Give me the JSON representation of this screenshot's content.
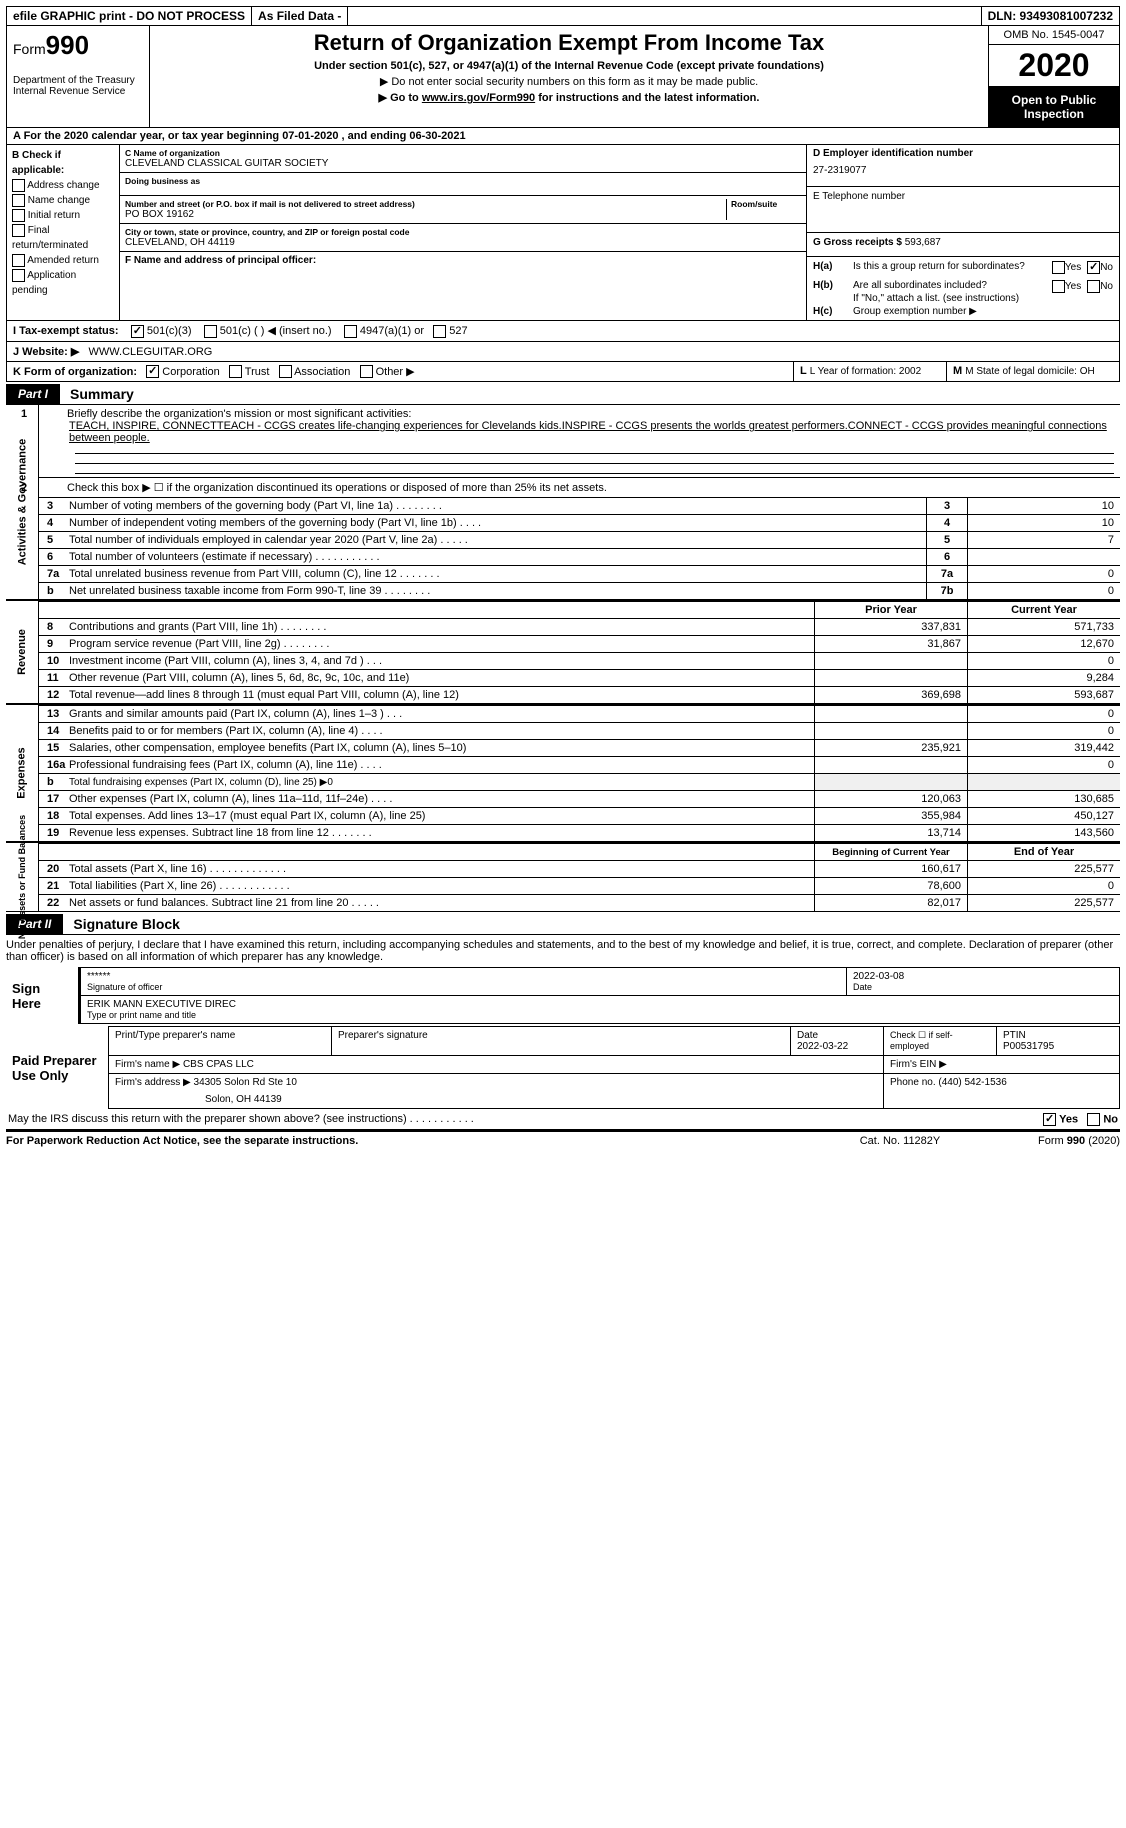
{
  "topbar": {
    "efile": "efile GRAPHIC print - DO NOT PROCESS",
    "asFiled": "As Filed Data -",
    "dln": "DLN: 93493081007232"
  },
  "header": {
    "form": "Form",
    "formNum": "990",
    "dept": "Department of the Treasury",
    "irs": "Internal Revenue Service",
    "title": "Return of Organization Exempt From Income Tax",
    "sub1": "Under section 501(c), 527, or 4947(a)(1) of the Internal Revenue Code (except private foundations)",
    "sub2": "▶ Do not enter social security numbers on this form as it may be made public.",
    "sub3a": "▶ Go to ",
    "sub3link": "www.irs.gov/Form990",
    "sub3b": " for instructions and the latest information.",
    "omb": "OMB No. 1545-0047",
    "year": "2020",
    "open": "Open to Public Inspection"
  },
  "rowA": "A   For the 2020 calendar year, or tax year beginning 07-01-2020   , and ending 06-30-2021",
  "colB": {
    "label": "B Check if applicable:",
    "items": [
      "Address change",
      "Name change",
      "Initial return",
      "Final return/terminated",
      "Amended return",
      "Application pending"
    ]
  },
  "colC": {
    "orgLbl": "C Name of organization",
    "org": "CLEVELAND CLASSICAL GUITAR SOCIETY",
    "dbaLbl": "Doing business as",
    "dba": "",
    "addrLbl": "Number and street (or P.O. box if mail is not delivered to street address)",
    "roomLbl": "Room/suite",
    "addr": "PO BOX 19162",
    "cityLbl": "City or town, state or province, country, and ZIP or foreign postal code",
    "city": "CLEVELAND, OH  44119",
    "fLbl": "F  Name and address of principal officer:",
    "fVal": ""
  },
  "colD": {
    "dLbl": "D Employer identification number",
    "ein": "27-2319077",
    "eLbl": "E Telephone number",
    "ePhone": "",
    "gLbl": "G Gross receipts $ ",
    "gVal": "593,687",
    "ha": "Is this a group return for subordinates?",
    "hb": "Are all subordinates included?",
    "hbNote": "If \"No,\" attach a list. (see instructions)",
    "hc": "Group exemption number ▶"
  },
  "rowI": {
    "lbl": "I   Tax-exempt status:",
    "o1": "501(c)(3)",
    "o2": "501(c) (   ) ◀ (insert no.)",
    "o3": "4947(a)(1) or",
    "o4": "527"
  },
  "rowJ": {
    "lbl": "J   Website: ▶",
    "val": "WWW.CLEGUITAR.ORG"
  },
  "rowK": {
    "lbl": "K Form of organization:",
    "opts": [
      "Corporation",
      "Trust",
      "Association",
      "Other ▶"
    ],
    "l": "L Year of formation: 2002",
    "m": "M State of legal domicile: OH"
  },
  "part1": {
    "badge": "Part I",
    "title": "Summary",
    "line1lbl": "1",
    "line1": "Briefly describe the organization's mission or most significant activities:",
    "line1txt": "TEACH, INSPIRE, CONNECTTEACH - CCGS creates life-changing experiences for Clevelands kids.INSPIRE - CCGS presents the worlds greatest performers.CONNECT - CCGS provides meaningful connections between people.",
    "line2lbl": "2",
    "line2": "Check this box ▶ ☐ if the organization discontinued its operations or disposed of more than 25% its net assets.",
    "rows36": [
      {
        "n": "3",
        "d": "Number of voting members of the governing body (Part VI, line 1a)   .    .    .    .    .    .    .    .",
        "k": "3",
        "v": "10"
      },
      {
        "n": "4",
        "d": "Number of independent voting members of the governing body (Part VI, line 1b)   .    .    .    .",
        "k": "4",
        "v": "10"
      },
      {
        "n": "5",
        "d": "Total number of individuals employed in calendar year 2020 (Part V, line 2a)   .    .    .    .    .",
        "k": "5",
        "v": "7"
      },
      {
        "n": "6",
        "d": "Total number of volunteers (estimate if necessary)   .    .    .    .    .    .    .    .    .    .    .",
        "k": "6",
        "v": ""
      },
      {
        "n": "7a",
        "d": "Total unrelated business revenue from Part VIII, column (C), line 12   .    .    .    .    .    .    .",
        "k": "7a",
        "v": "0"
      },
      {
        "n": "b",
        "d": "Net unrelated business taxable income from Form 990-T, line 39    .    .    .    .    .    .    .    .",
        "k": "7b",
        "v": "0"
      }
    ],
    "colhdrs": {
      "py": "Prior Year",
      "cy": "Current Year",
      "boy": "Beginning of Current Year",
      "eoy": "End of Year"
    },
    "revenue": [
      {
        "n": "8",
        "d": "Contributions and grants (Part VIII, line 1h)    .    .    .    .    .    .    .    .",
        "p": "337,831",
        "c": "571,733"
      },
      {
        "n": "9",
        "d": "Program service revenue (Part VIII, line 2g)    .    .    .    .    .    .    .    .",
        "p": "31,867",
        "c": "12,670"
      },
      {
        "n": "10",
        "d": "Investment income (Part VIII, column (A), lines 3, 4, and 7d )    .    .    .",
        "p": "",
        "c": "0"
      },
      {
        "n": "11",
        "d": "Other revenue (Part VIII, column (A), lines 5, 6d, 8c, 9c, 10c, and 11e)",
        "p": "",
        "c": "9,284"
      },
      {
        "n": "12",
        "d": "Total revenue—add lines 8 through 11 (must equal Part VIII, column (A), line 12)",
        "p": "369,698",
        "c": "593,687"
      }
    ],
    "expenses": [
      {
        "n": "13",
        "d": "Grants and similar amounts paid (Part IX, column (A), lines 1–3 )   .    .    .",
        "p": "",
        "c": "0"
      },
      {
        "n": "14",
        "d": "Benefits paid to or for members (Part IX, column (A), line 4)    .    .    .    .",
        "p": "",
        "c": "0"
      },
      {
        "n": "15",
        "d": "Salaries, other compensation, employee benefits (Part IX, column (A), lines 5–10)",
        "p": "235,921",
        "c": "319,442"
      },
      {
        "n": "16a",
        "d": "Professional fundraising fees (Part IX, column (A), line 11e)    .    .    .    .",
        "p": "",
        "c": "0"
      },
      {
        "n": "b",
        "d": "Total fundraising expenses (Part IX, column (D), line 25) ▶0",
        "p": "",
        "c": "",
        "noval": true
      },
      {
        "n": "17",
        "d": "Other expenses (Part IX, column (A), lines 11a–11d, 11f–24e)    .    .    .    .",
        "p": "120,063",
        "c": "130,685"
      },
      {
        "n": "18",
        "d": "Total expenses. Add lines 13–17 (must equal Part IX, column (A), line 25)",
        "p": "355,984",
        "c": "450,127"
      },
      {
        "n": "19",
        "d": "Revenue less expenses. Subtract line 18 from line 12   .    .    .    .    .    .    .",
        "p": "13,714",
        "c": "143,560"
      }
    ],
    "netassets": [
      {
        "n": "20",
        "d": "Total assets (Part X, line 16)  .    .    .    .    .    .    .    .    .    .    .    .    .",
        "p": "160,617",
        "c": "225,577"
      },
      {
        "n": "21",
        "d": "Total liabilities (Part X, line 26)    .    .    .    .    .    .    .    .    .    .    .    .",
        "p": "78,600",
        "c": "0"
      },
      {
        "n": "22",
        "d": "Net assets or fund balances. Subtract line 21 from line 20    .    .    .    .    .",
        "p": "82,017",
        "c": "225,577"
      }
    ],
    "vlabels": {
      "ag": "Activities & Governance",
      "rev": "Revenue",
      "exp": "Expenses",
      "na": "Net Assets or\nFund Balances"
    }
  },
  "part2": {
    "badge": "Part II",
    "title": "Signature Block",
    "decl": "Under penalties of perjury, I declare that I have examined this return, including accompanying schedules and statements, and to the best of my knowledge and belief, it is true, correct, and complete. Declaration of preparer (other than officer) is based on all information of which preparer has any knowledge.",
    "signHere": "Sign Here",
    "stars": "******",
    "sigOff": "Signature of officer",
    "date": "2022-03-08",
    "dateLbl": "Date",
    "name": "ERIK MANN EXECUTIVE DIREC",
    "nameLbl": "Type or print name and title",
    "paid": "Paid Preparer Use Only",
    "prepName": "Print/Type preparer's name",
    "prepSig": "Preparer's signature",
    "prepDate": "Date",
    "prepDateV": "2022-03-22",
    "chkSelf": "Check ☐ if self-employed",
    "ptin": "PTIN",
    "ptinV": "P00531795",
    "firmName": "Firm's name    ▶ CBS CPAS LLC",
    "firmEin": "Firm's EIN ▶",
    "firmAddr": "Firm's address ▶ 34305 Solon Rd Ste 10",
    "firmCity": "Solon, OH  44139",
    "phone": "Phone no. (440) 542-1536",
    "discuss": "May the IRS discuss this return with the preparer shown above? (see instructions)    .    .    .    .    .    .    .    .    .    .    .",
    "yes": "Yes",
    "no": "No"
  },
  "footer": {
    "pra": "For Paperwork Reduction Act Notice, see the separate instructions.",
    "cat": "Cat. No. 11282Y",
    "form": "Form 990 (2020)"
  }
}
